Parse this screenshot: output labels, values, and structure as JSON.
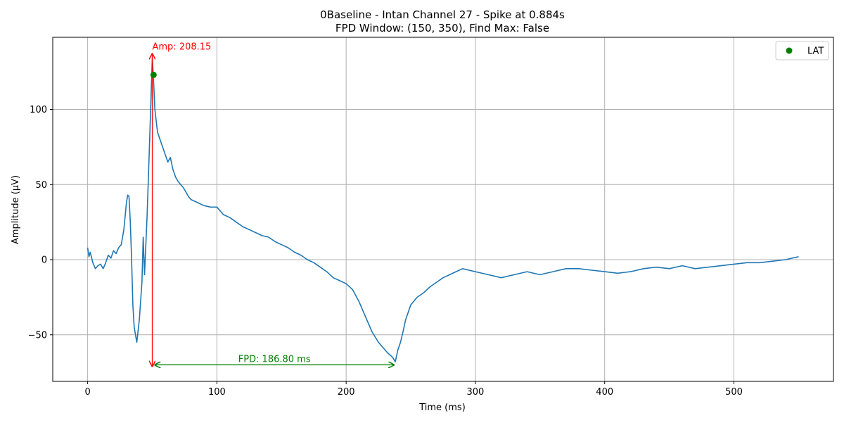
{
  "chart_data": {
    "type": "line",
    "title": "0Baseline - Intan Channel 27 - Spike at 0.884s",
    "subtitle": "FPD Window: (150, 350), Find Max: False",
    "xlabel": "Time (ms)",
    "ylabel": "Amplitude (µV)",
    "xlim": [
      -27,
      577
    ],
    "ylim": [
      -81,
      148
    ],
    "xticks": [
      0,
      100,
      200,
      300,
      400,
      500
    ],
    "yticks": [
      -50,
      0,
      50,
      100
    ],
    "xtick_labels": [
      "0",
      "100",
      "200",
      "300",
      "400",
      "500"
    ],
    "ytick_labels": [
      "−50",
      "0",
      "50",
      "100"
    ],
    "grid": true,
    "legend": {
      "placement": "top-right",
      "entries": [
        {
          "label": "LAT",
          "color": "#008000",
          "marker": "circle"
        }
      ]
    },
    "colors": {
      "signal": "#1f77b4",
      "amp_annotation": "#ff0000",
      "fpd_annotation": "#008000",
      "grid": "#b0b0b0"
    },
    "series": [
      {
        "color": "#1f77b4",
        "x": [
          0,
          1,
          2,
          4,
          6,
          8,
          10,
          12,
          14,
          16,
          18,
          20,
          22,
          24,
          26,
          28,
          30,
          31,
          32,
          33,
          34,
          35,
          36,
          38,
          40,
          42,
          43,
          44,
          46,
          48,
          50,
          51,
          52,
          54,
          56,
          58,
          60,
          62,
          64,
          66,
          68,
          70,
          72,
          74,
          76,
          78,
          80,
          85,
          90,
          95,
          100,
          105,
          110,
          115,
          120,
          125,
          130,
          135,
          140,
          145,
          150,
          155,
          160,
          165,
          170,
          175,
          180,
          185,
          190,
          195,
          200,
          205,
          210,
          215,
          220,
          225,
          228,
          232,
          236,
          238,
          240,
          242,
          244,
          246,
          248,
          250,
          255,
          260,
          265,
          270,
          275,
          280,
          285,
          290,
          300,
          310,
          320,
          330,
          340,
          350,
          360,
          370,
          380,
          390,
          400,
          410,
          420,
          430,
          440,
          450,
          460,
          470,
          480,
          490,
          500,
          510,
          520,
          530,
          540,
          550
        ],
        "y": [
          8,
          2,
          5,
          -2,
          -6,
          -4,
          -3,
          -6,
          -2,
          3,
          1,
          6,
          4,
          8,
          10,
          20,
          38,
          43,
          42,
          25,
          0,
          -30,
          -45,
          -55,
          -40,
          -15,
          15,
          -10,
          30,
          80,
          134,
          120,
          100,
          85,
          80,
          75,
          70,
          65,
          68,
          60,
          55,
          52,
          50,
          48,
          45,
          42,
          40,
          38,
          36,
          35,
          35,
          30,
          28,
          25,
          22,
          20,
          18,
          16,
          15,
          12,
          10,
          8,
          5,
          3,
          0,
          -2,
          -5,
          -8,
          -12,
          -14,
          -16,
          -20,
          -28,
          -38,
          -48,
          -55,
          -58,
          -62,
          -65,
          -68,
          -60,
          -55,
          -48,
          -40,
          -35,
          -30,
          -25,
          -22,
          -18,
          -15,
          -12,
          -10,
          -8,
          -6,
          -8,
          -10,
          -12,
          -10,
          -8,
          -10,
          -8,
          -6,
          -6,
          -7,
          -8,
          -9,
          -8,
          -6,
          -5,
          -6,
          -4,
          -6,
          -5,
          -4,
          -3,
          -2,
          -2,
          -1,
          0,
          2
        ]
      }
    ],
    "lat_point": {
      "label": "LAT",
      "x": 51,
      "y": 123
    },
    "annotations": {
      "amp": {
        "text": "Amp: 208.15",
        "x": 50,
        "y_top": 137,
        "y_bottom": -71
      },
      "fpd": {
        "text": "FPD: 186.80 ms",
        "x_start": 52,
        "x_end": 237,
        "y": -70
      }
    }
  }
}
